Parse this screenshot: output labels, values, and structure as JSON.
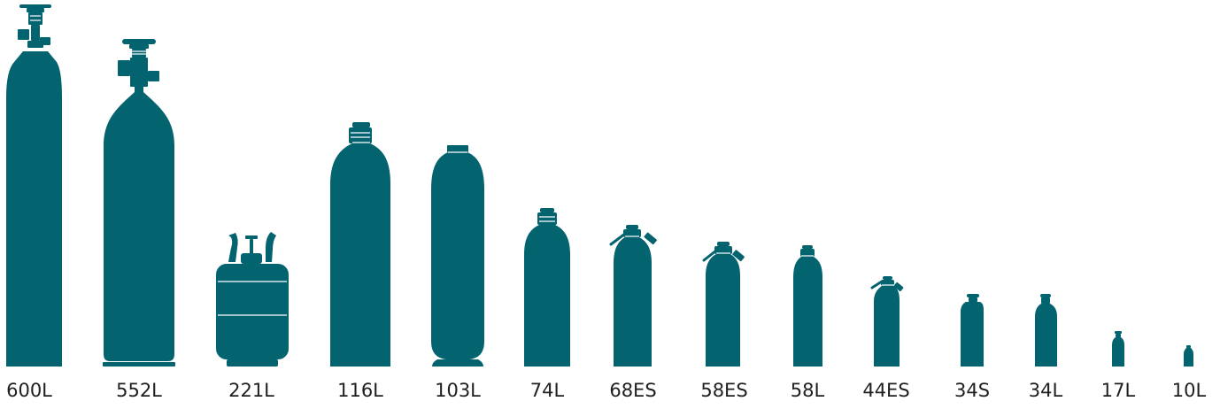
{
  "fill_color": "#03636f",
  "line_color": "#ffffff",
  "cylinders": [
    {
      "label": "600L",
      "style": "valve-tall"
    },
    {
      "label": "552L",
      "style": "valve-bulb"
    },
    {
      "label": "221L",
      "style": "refrigerant-drum"
    },
    {
      "label": "116L",
      "style": "plain"
    },
    {
      "label": "103L",
      "style": "plain-footed"
    },
    {
      "label": "74L",
      "style": "plain"
    },
    {
      "label": "68ES",
      "style": "easy-switch"
    },
    {
      "label": "58ES",
      "style": "easy-switch"
    },
    {
      "label": "58L",
      "style": "plain"
    },
    {
      "label": "44ES",
      "style": "easy-switch"
    },
    {
      "label": "34S",
      "style": "plain"
    },
    {
      "label": "34L",
      "style": "plain"
    },
    {
      "label": "17L",
      "style": "plain"
    },
    {
      "label": "10L",
      "style": "plain"
    }
  ]
}
